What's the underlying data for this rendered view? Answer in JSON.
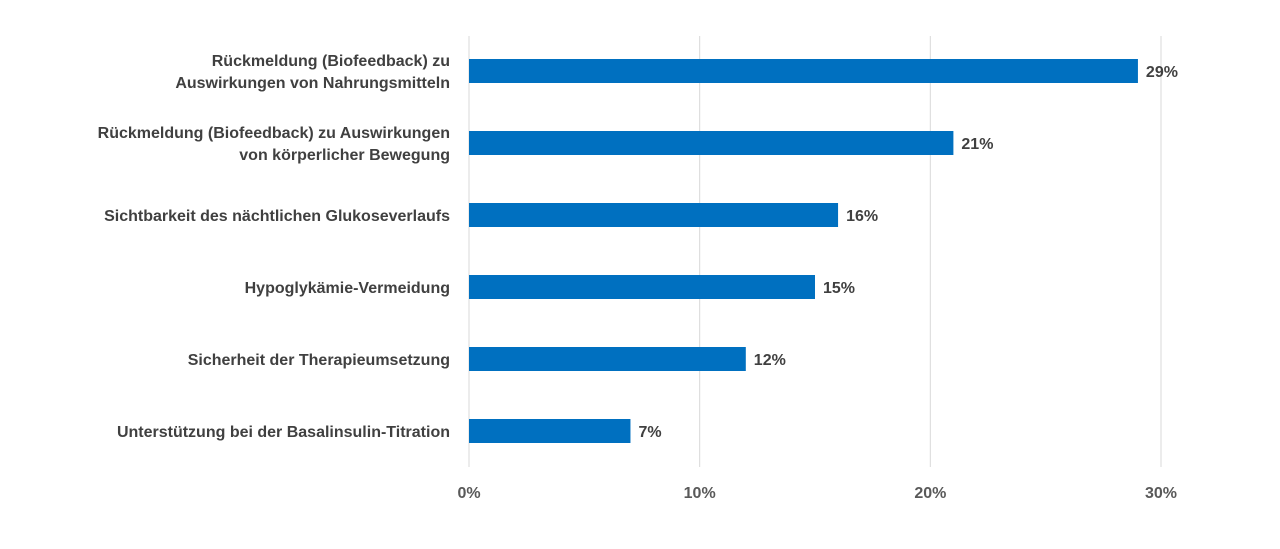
{
  "chart_data": {
    "type": "bar",
    "orientation": "horizontal",
    "categories": [
      [
        "Rückmeldung (Biofeedback) zu",
        "Auswirkungen von Nahrungsmitteln"
      ],
      [
        "Rückmeldung (Biofeedback) zu Auswirkungen",
        "von körperlicher Bewegung"
      ],
      [
        "Sichtbarkeit des nächtlichen Glukoseverlaufs"
      ],
      [
        "Hypoglykämie-Vermeidung"
      ],
      [
        "Sicherheit der Therapieumsetzung"
      ],
      [
        "Unterstützung bei der Basalinsulin-Titration"
      ]
    ],
    "values": [
      29,
      21,
      16,
      15,
      12,
      7
    ],
    "data_labels": [
      "29%",
      "21%",
      "16%",
      "15%",
      "12%",
      "7%"
    ],
    "xlim": [
      0,
      30
    ],
    "x_ticks": [
      0,
      10,
      20,
      30
    ],
    "x_tick_labels": [
      "0%",
      "10%",
      "20%",
      "30%"
    ],
    "grid": "vertical",
    "legend": "none",
    "bar_color": "#0070C0",
    "grid_color": "#D9D9D9"
  }
}
